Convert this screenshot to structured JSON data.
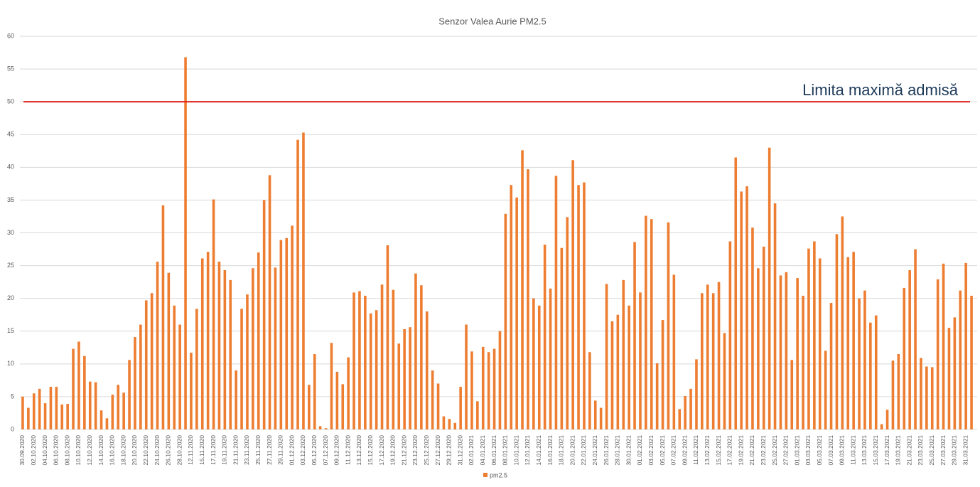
{
  "chart_data": {
    "type": "bar",
    "title": "Senzor Valea Aurie PM2.5",
    "categories": [
      "30.09.2020",
      null,
      "02.10.2020",
      null,
      "04.10.2020",
      null,
      "06.10.2020",
      null,
      "08.10.2020",
      null,
      "10.10.2020",
      null,
      "12.10.2020",
      null,
      "14.10.2020",
      null,
      "16.10.2020",
      null,
      "18.10.2020",
      null,
      "20.10.2020",
      null,
      "22.10.2020",
      null,
      "24.10.2020",
      null,
      "26.10.2020",
      null,
      "28.10.2020",
      null,
      "12.11.2020",
      null,
      "15.11.2020",
      null,
      "17.11.2020",
      null,
      "19.11.2020",
      null,
      "21.11.2020",
      null,
      "23.11.2020",
      null,
      "25.11.2020",
      null,
      "27.11.2020",
      null,
      "29.11.2020",
      null,
      "01.12.2020",
      null,
      "03.12.2020",
      null,
      "05.12.2020",
      null,
      "07.12.2020",
      null,
      "09.12.2020",
      null,
      "11.12.2020",
      null,
      "13.12.2020",
      null,
      "15.12.2020",
      null,
      "17.12.2020",
      null,
      "19.12.2020",
      null,
      "21.12.2020",
      null,
      "23.12.2020",
      null,
      "25.12.2020",
      null,
      "27.12.2020",
      null,
      "29.12.2020",
      null,
      "31.12.2020",
      null,
      "02.01.2021",
      null,
      "04.01.2021",
      null,
      "06.01.2021",
      null,
      "08.01.2021",
      null,
      "10.01.2021",
      null,
      "12.01.2021",
      null,
      "14.01.2021",
      null,
      "16.01.2021",
      null,
      "18.01.2021",
      null,
      "20.01.2021",
      null,
      "22.01.2021",
      null,
      "24.01.2021",
      null,
      "26.01.2021",
      null,
      "28.01.2021",
      null,
      "30.01.2021",
      null,
      "01.02.2021",
      null,
      "03.02.2021",
      null,
      "05.02.2021",
      null,
      "07.02.2021",
      null,
      "09.02.2021",
      null,
      "11.02.2021",
      null,
      "13.02.2021",
      null,
      "15.02.2021",
      null,
      "17.02.2021",
      null,
      "19.02.2021",
      null,
      "21.02.2021",
      null,
      "23.02.2021",
      null,
      "25.02.2021",
      null,
      "27.02.2021",
      null,
      "01.03.2021",
      null,
      "03.03.2021",
      null,
      "05.03.2021",
      null,
      "07.03.2021",
      null,
      "09.03.2021",
      null,
      "11.03.2021",
      null,
      "13.03.2021",
      null,
      "15.03.2021",
      null,
      "17.03.2021",
      null,
      "19.03.2021",
      null,
      "21.03.2021",
      null,
      "23.03.2021",
      null,
      "25.03.2021",
      null,
      "27.03.2021",
      null,
      "29.03.2021",
      null,
      "31.03.2021",
      null
    ],
    "series": [
      {
        "name": "pm2.5",
        "color": "#ed7d31",
        "values": [
          5.0,
          3.3,
          5.5,
          6.2,
          4.0,
          6.5,
          6.5,
          3.8,
          3.9,
          12.3,
          13.4,
          11.2,
          7.3,
          7.2,
          2.9,
          1.7,
          5.3,
          6.8,
          5.6,
          10.6,
          14.1,
          16.0,
          19.7,
          20.8,
          25.6,
          34.2,
          23.9,
          18.9,
          16.0,
          56.8,
          11.7,
          18.4,
          26.1,
          27.1,
          35.1,
          25.6,
          24.3,
          22.8,
          9.0,
          18.4,
          20.6,
          24.6,
          27.0,
          35.0,
          38.8,
          24.7,
          28.9,
          29.2,
          31.1,
          44.2,
          45.3,
          6.8,
          11.5,
          0.5,
          0.2,
          13.2,
          8.8,
          6.9,
          11.0,
          20.9,
          21.1,
          20.4,
          17.7,
          18.2,
          22.1,
          28.1,
          21.3,
          13.1,
          15.3,
          15.6,
          23.8,
          22.0,
          18.0,
          9.0,
          7.0,
          2.0,
          1.6,
          1.0,
          6.5,
          16.0,
          11.9,
          4.3,
          12.6,
          11.8,
          12.3,
          15.0,
          32.9,
          37.3,
          35.4,
          42.6,
          39.7,
          20.0,
          18.9,
          28.2,
          21.5,
          38.7,
          27.7,
          32.4,
          41.1,
          37.3,
          37.7,
          11.8,
          4.4,
          3.3,
          22.2,
          16.5,
          17.5,
          22.8,
          18.9,
          28.6,
          20.9,
          32.6,
          32.1,
          10.1,
          16.7,
          31.6,
          23.6,
          3.1,
          5.1,
          6.2,
          10.7,
          20.8,
          22.1,
          20.8,
          22.5,
          14.7,
          28.7,
          41.5,
          36.3,
          37.1,
          30.8,
          24.6,
          27.9,
          43.0,
          34.5,
          23.5,
          24.0,
          10.6,
          23.1,
          20.4,
          27.6,
          28.7,
          26.1,
          12.0,
          19.3,
          29.8,
          32.5,
          26.3,
          27.1,
          20.0,
          21.2,
          16.3,
          17.4,
          0.8,
          3.0,
          10.5,
          11.5,
          21.6,
          24.3,
          27.5,
          10.9,
          9.6,
          9.5,
          22.9,
          25.3,
          15.5,
          17.1,
          21.2,
          25.4,
          20.4
        ]
      }
    ],
    "ylim": [
      0,
      60
    ],
    "yticks": [
      0,
      5,
      10,
      15,
      20,
      25,
      30,
      35,
      40,
      45,
      50,
      55,
      60
    ],
    "grid": true,
    "legend": "bottom",
    "reference_line": {
      "value": 50,
      "label": "Limita maximă admisă",
      "color": "#e0201b"
    }
  }
}
